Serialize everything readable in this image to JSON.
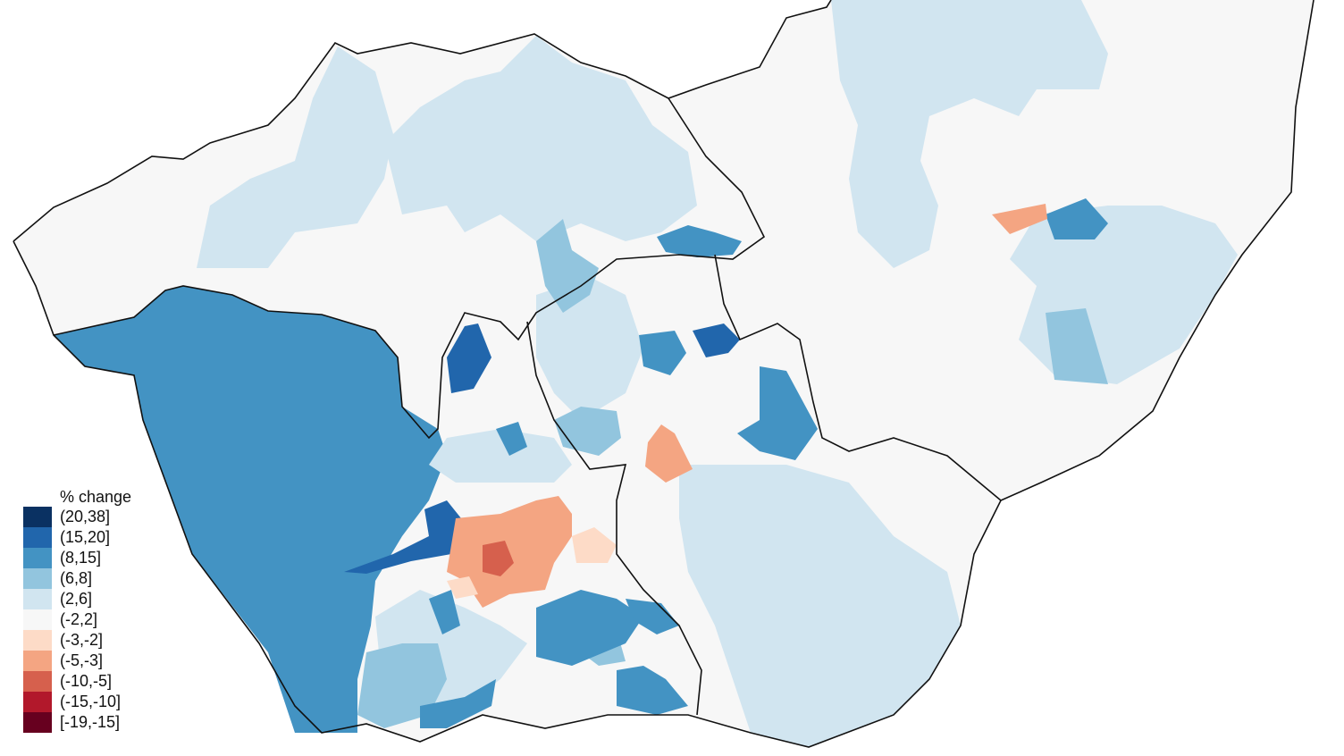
{
  "legend": {
    "title": "% change",
    "items": [
      {
        "label": "(20,38]",
        "color": "#0a3162"
      },
      {
        "label": "(15,20]",
        "color": "#2166ac"
      },
      {
        "label": "(8,15]",
        "color": "#4393c3"
      },
      {
        "label": "(6,8]",
        "color": "#92c5de"
      },
      {
        "label": "(2,6]",
        "color": "#d1e5f0"
      },
      {
        "label": "(-2,2]",
        "color": "#f7f7f7"
      },
      {
        "label": "(-3,-2]",
        "color": "#fddbc7"
      },
      {
        "label": "(-5,-3]",
        "color": "#f4a582"
      },
      {
        "label": "(-10,-5]",
        "color": "#d6604d"
      },
      {
        "label": "(-15,-10]",
        "color": "#b2182b"
      },
      {
        "label": "[-19,-15]",
        "color": "#67001f"
      }
    ]
  },
  "colors": {
    "boundary": "#111111",
    "background": "#ffffff"
  }
}
